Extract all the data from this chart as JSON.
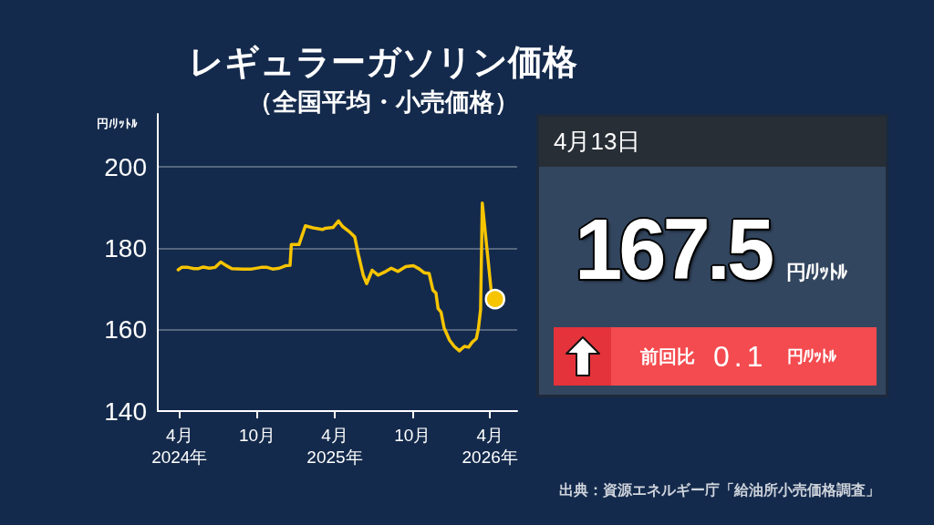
{
  "chart_data": [
    {
      "type": "line",
      "title": "レギュラーガソリン価格",
      "subtitle": "（全国平均・小売価格）",
      "ylabel": "円/ﾘｯﾄﾙ",
      "series": [
        {
          "type": "line",
          "color": "#f6c400",
          "marker": "none",
          "x": [
            "2024-03-29",
            "2024-04-06",
            "2024-04-21",
            "2024-05-05",
            "2024-05-16",
            "2024-05-27",
            "2024-06-10",
            "2024-06-24",
            "2024-07-07",
            "2024-07-19",
            "2024-08-02",
            "2024-08-27",
            "2024-09-18",
            "2024-10-10",
            "2024-10-24",
            "2024-11-06",
            "2024-11-22",
            "2024-12-06",
            "2024-12-17",
            "2024-12-20",
            "2025-01-07",
            "2025-01-22",
            "2025-02-09",
            "2025-03-03",
            "2025-03-10",
            "2025-03-28",
            "2025-04-10",
            "2025-04-19",
            "2025-05-05",
            "2025-05-18",
            "2025-05-27",
            "2025-06-07",
            "2025-06-15",
            "2025-06-28",
            "2025-07-12",
            "2025-07-30",
            "2025-08-12",
            "2025-08-28",
            "2025-09-15",
            "2025-10-03",
            "2025-10-17",
            "2025-10-28",
            "2025-11-09",
            "2025-11-18",
            "2025-11-25",
            "2025-11-30",
            "2025-12-07",
            "2025-12-14",
            "2025-12-27",
            "2026-01-07",
            "2026-01-19",
            "2026-01-31",
            "2026-02-10",
            "2026-02-19",
            "2026-02-28",
            "2026-03-05",
            "2026-03-10",
            "2026-03-14",
            "2026-04-06",
            "2026-04-13"
          ],
          "values": [
            174.7,
            175.3,
            175.3,
            175.0,
            175.0,
            175.4,
            175.1,
            175.3,
            176.6,
            175.8,
            175.0,
            174.9,
            174.9,
            175.3,
            175.3,
            174.9,
            175.1,
            175.7,
            175.8,
            180.9,
            180.9,
            185.5,
            185.0,
            184.6,
            184.9,
            185.1,
            186.7,
            185.4,
            184.1,
            182.8,
            178.3,
            173.4,
            171.3,
            174.6,
            173.4,
            174.3,
            175.1,
            174.3,
            175.5,
            175.7,
            174.9,
            174.0,
            173.8,
            169.7,
            169.0,
            165.2,
            164.3,
            160.5,
            157.4,
            155.9,
            154.8,
            155.9,
            155.7,
            157.0,
            157.8,
            160.4,
            164.9,
            191.1,
            167.4,
            167.5
          ]
        },
        {
          "type": "scatter",
          "color": "#f6c400",
          "marker": "circle",
          "x": [
            "2026-04-13"
          ],
          "values": [
            167.5
          ]
        }
      ],
      "xlim": [
        "2024-02-10",
        "2026-06-04"
      ],
      "xticks": [
        {
          "value": "2024-04",
          "label": "4月\n2024年"
        },
        {
          "value": "2024-10",
          "label": "10月"
        },
        {
          "value": "2025-04",
          "label": "4月\n2025年"
        },
        {
          "value": "2025-10",
          "label": "10月"
        },
        {
          "value": "2026-04",
          "label": "4月\n2026年"
        }
      ],
      "ylim": [
        140,
        213
      ],
      "yticks": [
        140,
        160,
        180,
        200
      ],
      "grid": "y",
      "annotations": [
        "出典：資源エネルギー庁「給油所小売価格調査」"
      ]
    },
    {
      "type": "other",
      "title": "4月13日",
      "annotations": [
        "167.5",
        "円/ﾘｯﾄﾙ",
        "前回比",
        "0.1",
        "円/ﾘｯﾄﾙ"
      ]
    }
  ]
}
